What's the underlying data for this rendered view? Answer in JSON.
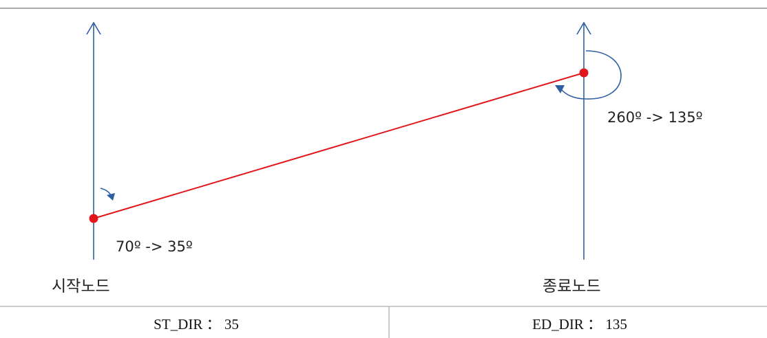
{
  "start_node": {
    "label": "시작노드",
    "angle_text": "70º -> 35º"
  },
  "end_node": {
    "label": "종료노드",
    "angle_text": "260º -> 135º"
  },
  "table": {
    "cells": [
      {
        "text": "ST_DIR ： 35"
      },
      {
        "text": "ED_DIR ： 135"
      }
    ]
  },
  "colors": {
    "axis_line": "#2e5fa3",
    "link_line": "#e0161b",
    "node_dot": "#e0161b",
    "rotation_arrow": "#2e5fa3",
    "top_border": "#aaaaaa",
    "table_border": "#bbbbbb"
  }
}
